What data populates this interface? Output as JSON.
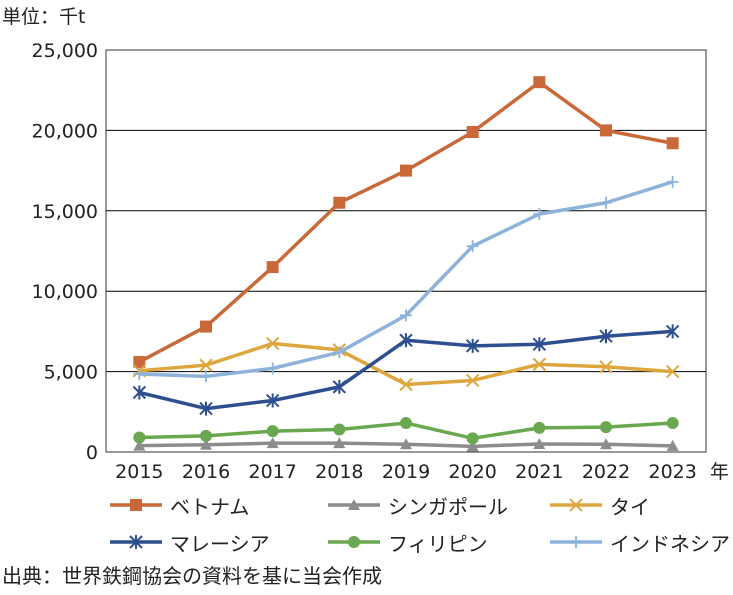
{
  "unit_label": "単位：千t",
  "source": "出典：世界鉄鋼協会の資料を基に当会作成",
  "chart_data": {
    "type": "line",
    "title": "",
    "xlabel": "年",
    "ylabel": "単位：千t",
    "x": [
      "2015",
      "2016",
      "2017",
      "2018",
      "2019",
      "2020",
      "2021",
      "2022",
      "2023"
    ],
    "ylim": [
      0,
      25000
    ],
    "yticks": [
      0,
      5000,
      10000,
      15000,
      20000,
      25000
    ],
    "ytick_labels": [
      "0",
      "5,000",
      "10,000",
      "15,000",
      "20,000",
      "25,000"
    ],
    "grid": "horizontal",
    "legend_position": "bottom",
    "series": [
      {
        "name": "ベトナム",
        "color": "#C9693A",
        "marker": "square",
        "values": [
          5600,
          7800,
          11500,
          15500,
          17500,
          19900,
          23000,
          20000,
          19200
        ]
      },
      {
        "name": "シンガポール",
        "color": "#8C8C8C",
        "marker": "triangle",
        "values": [
          400,
          450,
          550,
          550,
          480,
          350,
          500,
          480,
          380
        ]
      },
      {
        "name": "タイ",
        "color": "#DDA73E",
        "marker": "x",
        "values": [
          5050,
          5400,
          6750,
          6350,
          4200,
          4450,
          5450,
          5300,
          5000
        ]
      },
      {
        "name": "マレーシア",
        "color": "#2E4F8F",
        "marker": "asterisk",
        "values": [
          3700,
          2700,
          3200,
          4050,
          6950,
          6600,
          6700,
          7200,
          7500
        ]
      },
      {
        "name": "フィリピン",
        "color": "#6AA84F",
        "marker": "circle",
        "values": [
          900,
          1000,
          1300,
          1400,
          1800,
          850,
          1500,
          1550,
          1800
        ]
      },
      {
        "name": "インドネシア",
        "color": "#8DB3DA",
        "marker": "plus",
        "values": [
          4850,
          4700,
          5200,
          6200,
          8500,
          12800,
          14800,
          15500,
          16800
        ]
      }
    ]
  }
}
